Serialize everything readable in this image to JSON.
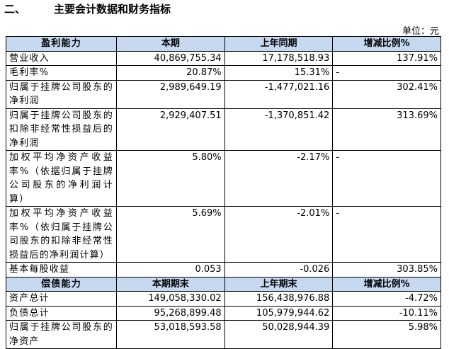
{
  "title": {
    "number": "二、",
    "text": "主要会计数据和财务指标"
  },
  "unit": "单位：元",
  "sections": [
    {
      "header": [
        "盈利能力",
        "本期",
        "上年同期",
        "增减比例%"
      ],
      "rows": [
        [
          "营业收入",
          "40,869,755.34",
          "17,178,518.93",
          "137.91%"
        ],
        [
          "毛利率%",
          "20.87%",
          "15.31%",
          "-"
        ],
        [
          "归属于挂牌公司股东的净利润",
          "2,989,649.19",
          "-1,477,021.16",
          "302.41%"
        ],
        [
          "归属于挂牌公司股东的扣除非经常性损益后的净利润",
          "2,929,407.51",
          "-1,370,851.42",
          "313.69%"
        ],
        [
          "加权平均净资产收益率%（依据归属于挂牌公司股东的净利润计算）",
          "5.80%",
          "-2.17%",
          "-"
        ],
        [
          "加权平均净资产收益率%（依归属于挂牌公司股东的扣除非经常性损益后的净利润计算）",
          "5.69%",
          "-2.01%",
          "-"
        ],
        [
          "基本每股收益",
          "0.053",
          "-0.026",
          "303.85%"
        ]
      ]
    },
    {
      "header": [
        "偿债能力",
        "本期期末",
        "上年期末",
        "增减比例%"
      ],
      "rows": [
        [
          "资产总计",
          "149,058,330.02",
          "156,438,976.88",
          "-4.72%"
        ],
        [
          "负债总计",
          "95,268,899.48",
          "105,979,944.62",
          "-10.11%"
        ],
        [
          "归属于挂牌公司股东的净资产",
          "53,018,593.58",
          "50,028,944.39",
          "5.98%"
        ]
      ]
    }
  ]
}
